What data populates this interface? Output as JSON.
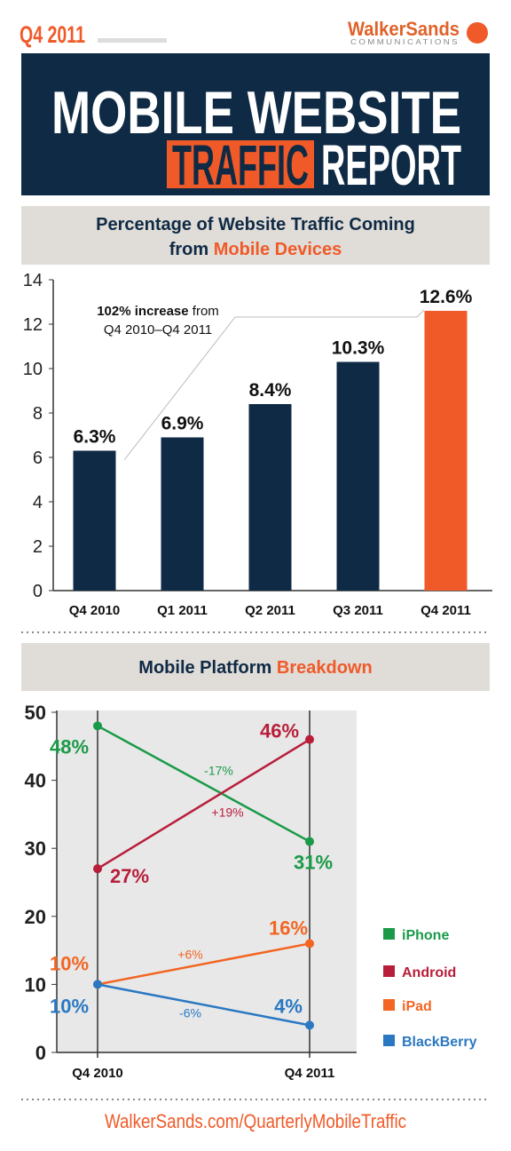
{
  "header": {
    "period": "Q4 2011",
    "brand": "WalkerSands",
    "brand_sub": "COMMUNICATIONS",
    "title_line1": "MOBILE WEBSITE",
    "title_highlight": "TRAFFIC",
    "title_rest": "REPORT"
  },
  "chart_data": [
    {
      "type": "bar",
      "title": "Percentage of Website Traffic Coming",
      "title_line2": "from",
      "title_highlight": "Mobile Devices",
      "categories": [
        "Q4 2010",
        "Q1 2011",
        "Q2 2011",
        "Q3 2011",
        "Q4 2011"
      ],
      "values": [
        6.3,
        6.9,
        8.4,
        10.3,
        12.6
      ],
      "value_labels": [
        "6.3%",
        "6.9%",
        "8.4%",
        "10.3%",
        "12.6%"
      ],
      "colors": [
        "#0f2a44",
        "#0f2a44",
        "#0f2a44",
        "#0f2a44",
        "#f05a28"
      ],
      "ylim": [
        0,
        14
      ],
      "yticks": [
        0,
        2,
        4,
        6,
        8,
        10,
        12,
        14
      ],
      "annotation": {
        "emphasis": "102% increase",
        "text": "from",
        "line2": "Q4 2010–Q4 2011"
      }
    },
    {
      "type": "line",
      "title": "Mobile Platform",
      "title_highlight": "Breakdown",
      "categories": [
        "Q4 2010",
        "Q4 2011"
      ],
      "series": [
        {
          "name": "iPhone",
          "color": "#1a9a48",
          "values": [
            48,
            31
          ],
          "value_labels": [
            "48%",
            "31%"
          ],
          "change_label": "-17%"
        },
        {
          "name": "Android",
          "color": "#b81e3a",
          "values": [
            27,
            46
          ],
          "value_labels": [
            "27%",
            "46%"
          ],
          "change_label": "+19%"
        },
        {
          "name": "iPad",
          "color": "#f26522",
          "values": [
            10,
            16
          ],
          "value_labels": [
            "10%",
            "16%"
          ],
          "change_label": "+6%"
        },
        {
          "name": "BlackBerry",
          "color": "#2a78c2",
          "values": [
            10,
            4
          ],
          "value_labels": [
            "10%",
            "4%"
          ],
          "change_label": "-6%"
        }
      ],
      "ylim": [
        0,
        50
      ],
      "yticks": [
        0,
        10,
        20,
        30,
        40,
        50
      ],
      "legend": "right"
    }
  ],
  "footer": {
    "url": "WalkerSands.com/QuarterlyMobileTraffic"
  }
}
